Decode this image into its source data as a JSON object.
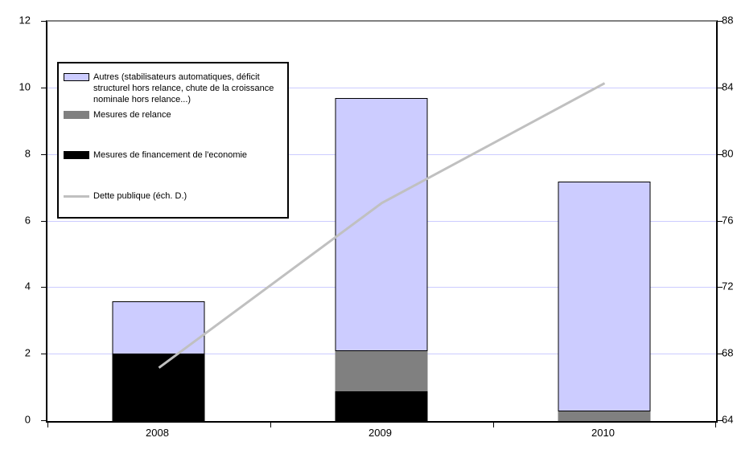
{
  "chart_data": {
    "type": "bar",
    "subtype": "stacked-bars-with-line",
    "categories": [
      "2008",
      "2009",
      "2010"
    ],
    "series": [
      {
        "name": "Mesures de financement de l'economie",
        "type": "bar",
        "color": "#000000",
        "values": [
          2.0,
          0.9,
          0
        ]
      },
      {
        "name": "Mesures de relance",
        "type": "bar",
        "color": "#808080",
        "values": [
          0,
          1.2,
          0.3
        ]
      },
      {
        "name": "Autres (stabilisateurs automatiques, déficit structurel hors relance, chute de la croissance nominale hors relance...)",
        "type": "bar",
        "color": "#ccccff",
        "values": [
          1.6,
          7.6,
          6.9
        ]
      }
    ],
    "line_series": {
      "name": "Dette publique (éch. D.)",
      "type": "line",
      "color": "#c0c0c0",
      "axis": "right",
      "values": [
        67.2,
        77.1,
        84.3
      ]
    },
    "stacked_totals": [
      3.6,
      9.7,
      7.2
    ],
    "left_axis": {
      "min": 0,
      "max": 12,
      "step": 2,
      "ticks": [
        0,
        2,
        4,
        6,
        8,
        10,
        12
      ]
    },
    "right_axis": {
      "min": 64,
      "max": 88,
      "step": 4,
      "ticks": [
        64,
        68,
        72,
        76,
        80,
        84,
        88
      ]
    },
    "title": "",
    "xlabel": "",
    "ylabel": "",
    "legend_position": "top-left",
    "grid": true,
    "colors": {
      "gridline": "#ccccff",
      "plot_border_top": "#808080",
      "axis": "#000000",
      "background": "#ffffff"
    }
  }
}
